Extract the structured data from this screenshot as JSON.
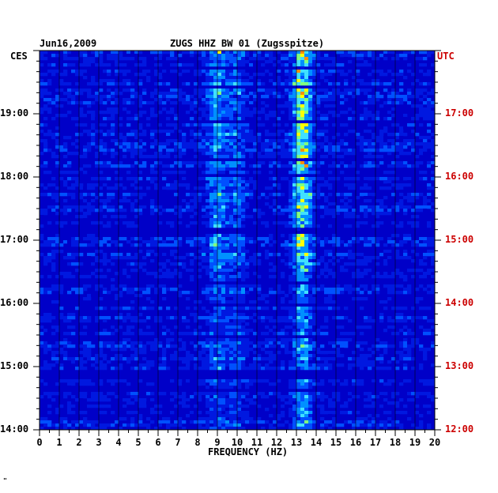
{
  "header": {
    "date": "Jun16,2009",
    "station": "ZUGS HHZ BW 01 (Zugsspitze)",
    "left_zone": "CES",
    "right_zone": "UTC"
  },
  "footer": {
    "mark": "\""
  },
  "colors": {
    "background_low": "#0000c8",
    "mid": "#0050ff",
    "high": "#40e0ff",
    "peak": "#ffff00",
    "max": "#ff2000",
    "right_axis_text": "#cc0000",
    "left_axis_text": "#000000"
  },
  "chart_data": {
    "type": "heatmap",
    "title": "ZUGS HHZ BW 01 (Zugsspitze)",
    "xlabel": "FREQUENCY (HZ)",
    "xlim": [
      0,
      20
    ],
    "x_ticks": [
      "0",
      "1",
      "2",
      "3",
      "4",
      "5",
      "6",
      "7",
      "8",
      "9",
      "10",
      "11",
      "12",
      "13",
      "14",
      "15",
      "16",
      "17",
      "18",
      "19",
      "20"
    ],
    "y_ticks_left": [
      "19:00",
      "18:00",
      "17:00",
      "16:00",
      "15:00",
      "14:00"
    ],
    "y_ticks_right": [
      "17:00",
      "16:00",
      "15:00",
      "14:00",
      "13:00",
      "12:00"
    ],
    "y_tick_hours_left": [
      19,
      18,
      17,
      16,
      15,
      14
    ],
    "time_range_local": [
      "14:00",
      "20:00"
    ],
    "energy_bands_hz": [
      {
        "center": 9.0,
        "strength": 0.55
      },
      {
        "center": 13.3,
        "strength": 0.95
      },
      {
        "center": 10.0,
        "strength": 0.35
      }
    ]
  }
}
